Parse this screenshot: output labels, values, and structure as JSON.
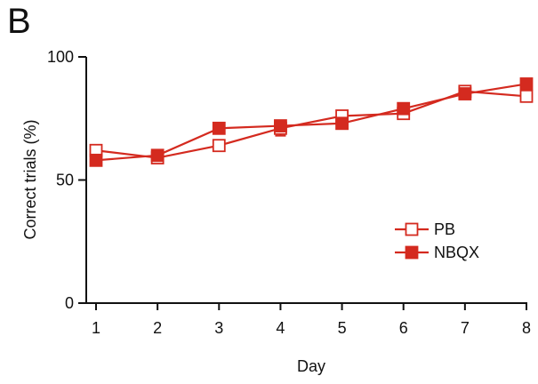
{
  "panel_label": "B",
  "colors": {
    "series": "#d42a1f",
    "axis": "#111111"
  },
  "chart_data": {
    "type": "line",
    "title": "",
    "xlabel": "Day",
    "ylabel": "Correct trials (%)",
    "x": [
      1,
      2,
      3,
      4,
      5,
      6,
      7,
      8
    ],
    "xlim": [
      1,
      8
    ],
    "ylim": [
      0,
      100
    ],
    "yticks": [
      0,
      50,
      100
    ],
    "xticks": [
      1,
      2,
      3,
      4,
      5,
      6,
      7,
      8
    ],
    "grid": false,
    "legend_position": "center-right",
    "series": [
      {
        "name": "PB",
        "marker": "open-square",
        "values": [
          62,
          59,
          64,
          71,
          76,
          77,
          86,
          84
        ],
        "errors": [
          2,
          2,
          2,
          3,
          2,
          2,
          1,
          2
        ]
      },
      {
        "name": "NBQX",
        "marker": "filled-square",
        "values": [
          58,
          60,
          71,
          72,
          73,
          79,
          85,
          89
        ],
        "errors": [
          1,
          1,
          2,
          2,
          1,
          1,
          1,
          1
        ]
      }
    ]
  }
}
